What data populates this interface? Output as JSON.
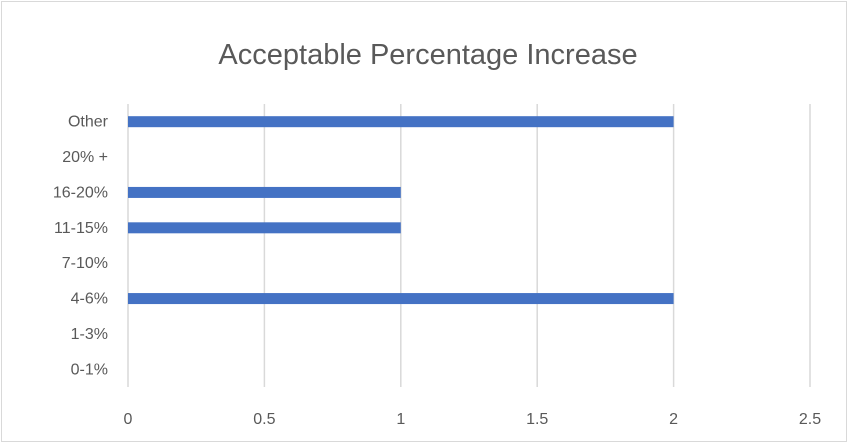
{
  "chart_data": {
    "type": "bar",
    "orientation": "horizontal",
    "title": "Acceptable Percentage Increase",
    "xlabel": "",
    "ylabel": "",
    "categories": [
      "Other",
      "20% +",
      "16-20%",
      "11-15%",
      "7-10%",
      "4-6%",
      "1-3%",
      "0-1%"
    ],
    "values": [
      2,
      0,
      1,
      1,
      0,
      2,
      0,
      0
    ],
    "xlim": [
      0,
      2.5
    ],
    "xticks": [
      "0",
      "0.5",
      "1",
      "1.5",
      "2",
      "2.5"
    ],
    "grid": "vertical",
    "legend": "none",
    "bar_color": "#4472C4",
    "grid_color": "#d9d9d9"
  }
}
